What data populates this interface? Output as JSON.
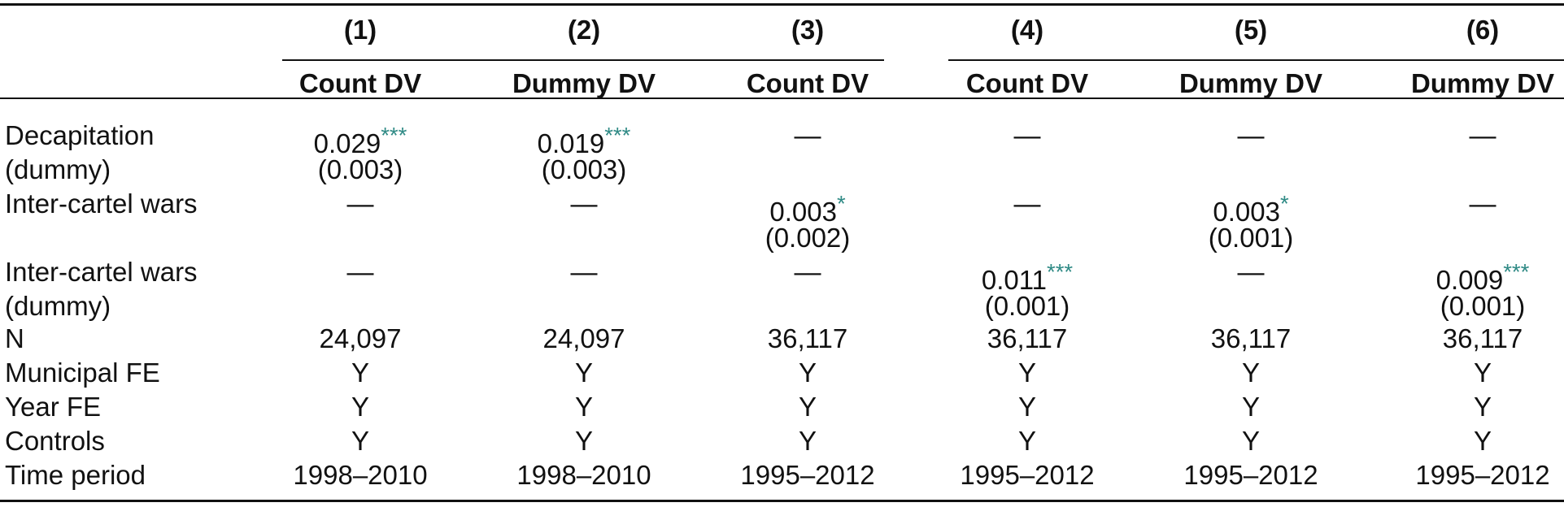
{
  "table": {
    "columns": [
      {
        "num": "(1)",
        "dv": "Count DV"
      },
      {
        "num": "(2)",
        "dv": "Dummy DV"
      },
      {
        "num": "(3)",
        "dv": "Count DV"
      },
      {
        "num": "(4)",
        "dv": "Count DV"
      },
      {
        "num": "(5)",
        "dv": "Dummy DV"
      },
      {
        "num": "(6)",
        "dv": "Dummy DV"
      }
    ],
    "dash": "—",
    "rows": {
      "decap": {
        "label1": "Decapitation",
        "label2": "(dummy)",
        "c1": {
          "coef": "0.029",
          "stars": "***",
          "se": "(0.003)"
        },
        "c2": {
          "coef": "0.019",
          "stars": "***",
          "se": "(0.003)"
        }
      },
      "wars": {
        "label": "Inter-cartel wars",
        "c3": {
          "coef": "0.003",
          "stars": "*",
          "se": "(0.002)"
        },
        "c5": {
          "coef": "0.003",
          "stars": "*",
          "se": "(0.001)"
        }
      },
      "warsdummy": {
        "label1": "Inter-cartel wars",
        "label2": "(dummy)",
        "c4": {
          "coef": "0.011",
          "stars": "***",
          "se": "(0.001)"
        },
        "c6": {
          "coef": "0.009",
          "stars": "***",
          "se": "(0.001)"
        }
      },
      "n": {
        "label": "N",
        "values": [
          "24,097",
          "24,097",
          "36,117",
          "36,117",
          "36,117",
          "36,117"
        ]
      },
      "mfe": {
        "label": "Municipal FE",
        "values": [
          "Y",
          "Y",
          "Y",
          "Y",
          "Y",
          "Y"
        ]
      },
      "yfe": {
        "label": "Year FE",
        "values": [
          "Y",
          "Y",
          "Y",
          "Y",
          "Y",
          "Y"
        ]
      },
      "controls": {
        "label": "Controls",
        "values": [
          "Y",
          "Y",
          "Y",
          "Y",
          "Y",
          "Y"
        ]
      },
      "period": {
        "label": "Time period",
        "values": [
          "1998–2010",
          "1998–2010",
          "1995–2012",
          "1995–2012",
          "1995–2012",
          "1995–2012"
        ]
      }
    }
  }
}
